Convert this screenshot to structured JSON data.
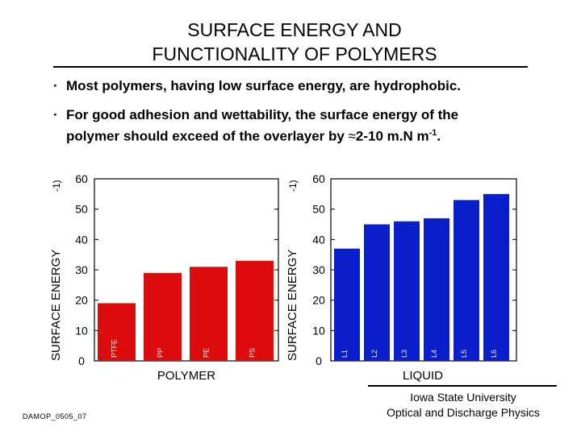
{
  "slide": {
    "title_line1": "SURFACE ENERGY AND",
    "title_line2": "FUNCTIONALITY OF POLYMERS",
    "bullets": [
      {
        "marker": "·",
        "text": "Most polymers, having low surface energy, are hydrophobic."
      },
      {
        "marker": "·",
        "text_line1": "For good adhesion and wettability, the surface energy of the",
        "text_line2_pre": "polymer should exceed of the overlayer by ",
        "approx": "≈",
        "text_line2_value": "2-10 m.N m",
        "superscript": "-1",
        "text_line2_end": "."
      }
    ],
    "footer_left": "DAMOP_0505_07",
    "footer_right_line1": "Iowa State University",
    "footer_right_line2": "Optical and Discharge Physics"
  },
  "chart_data": [
    {
      "type": "bar",
      "name": "polymer",
      "xlabel": "POLYMER",
      "ylabel": "SURFACE ENERGY",
      "ylabel_unit": "-1)",
      "ylim": [
        0,
        60
      ],
      "yticks": [
        0,
        10,
        20,
        30,
        40,
        50,
        60
      ],
      "categories": [
        "PTFE",
        "PP",
        "PE",
        "PS"
      ],
      "values": [
        19,
        29,
        31,
        33
      ],
      "color": "#dd0b0b"
    },
    {
      "type": "bar",
      "name": "liquid",
      "xlabel": "LIQUID",
      "ylabel": "SURFACE ENERGY",
      "ylabel_unit": "-1)",
      "ylim": [
        0,
        60
      ],
      "yticks": [
        0,
        10,
        20,
        30,
        40,
        50,
        60
      ],
      "categories": [
        "L1",
        "L2",
        "L3",
        "L4",
        "L5",
        "L6"
      ],
      "values": [
        37,
        45,
        46,
        47,
        53,
        55
      ],
      "color": "#0a1ecc"
    }
  ]
}
